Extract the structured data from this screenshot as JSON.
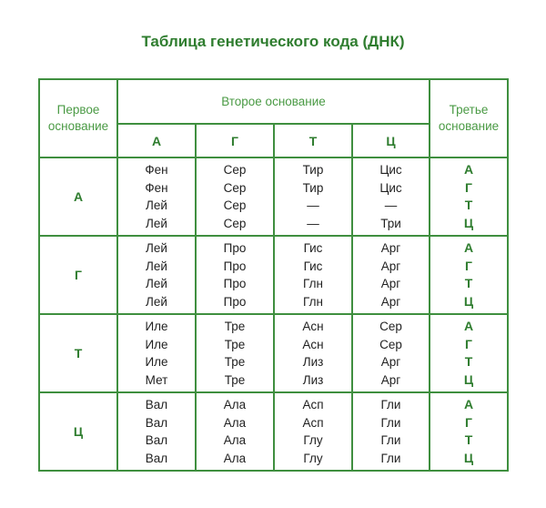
{
  "title": "Таблица генетического кода (ДНК)",
  "headers": {
    "first": "Первое основание",
    "second": "Второе основание",
    "third": "Третье основание",
    "second_bases": [
      "А",
      "Г",
      "Т",
      "Ц"
    ]
  },
  "third_bases": [
    "А",
    "Г",
    "Т",
    "Ц"
  ],
  "groups": [
    {
      "first": "А",
      "columns": [
        [
          "Фен",
          "Фен",
          "Лей",
          "Лей"
        ],
        [
          "Сер",
          "Сер",
          "Сер",
          "Сер"
        ],
        [
          "Тир",
          "Тир",
          "—",
          "—"
        ],
        [
          "Цис",
          "Цис",
          "—",
          "Три"
        ]
      ]
    },
    {
      "first": "Г",
      "columns": [
        [
          "Лей",
          "Лей",
          "Лей",
          "Лей"
        ],
        [
          "Про",
          "Про",
          "Про",
          "Про"
        ],
        [
          "Гис",
          "Гис",
          "Глн",
          "Глн"
        ],
        [
          "Арг",
          "Арг",
          "Арг",
          "Арг"
        ]
      ]
    },
    {
      "first": "Т",
      "columns": [
        [
          "Иле",
          "Иле",
          "Иле",
          "Мет"
        ],
        [
          "Тре",
          "Тре",
          "Тре",
          "Тре"
        ],
        [
          "Асн",
          "Асн",
          "Лиз",
          "Лиз"
        ],
        [
          "Сер",
          "Сер",
          "Арг",
          "Арг"
        ]
      ]
    },
    {
      "first": "Ц",
      "columns": [
        [
          "Вал",
          "Вал",
          "Вал",
          "Вал"
        ],
        [
          "Ала",
          "Ала",
          "Ала",
          "Ала"
        ],
        [
          "Асп",
          "Асп",
          "Глу",
          "Глу"
        ],
        [
          "Гли",
          "Гли",
          "Гли",
          "Гли"
        ]
      ]
    }
  ],
  "colors": {
    "border": "#3f8f3f",
    "accent": "#2f7d2f",
    "header_text": "#4a9a44",
    "text": "#222222"
  }
}
